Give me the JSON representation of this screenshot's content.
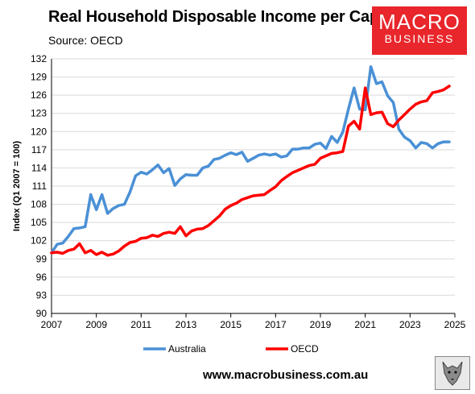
{
  "header": {
    "title": "Real Household Disposable Income per Capita",
    "source": "Source: OECD"
  },
  "logo": {
    "line1": "MACRO",
    "line2": "BUSINESS"
  },
  "footer": {
    "url": "www.macrobusiness.com.au"
  },
  "colors": {
    "australia": "#4a90d6",
    "oecd": "#ff0000",
    "logo_bg": "#e8262b"
  },
  "chart_data": {
    "type": "line",
    "xlabel": "",
    "ylabel": "Index (Q1 2007 = 100)",
    "xlim": [
      2007,
      2025
    ],
    "ylim": [
      90,
      132
    ],
    "x_ticks": [
      "2007",
      "2009",
      "2011",
      "2013",
      "2015",
      "2017",
      "2019",
      "2021",
      "2023",
      "2025"
    ],
    "y_ticks": [
      "90",
      "93",
      "96",
      "99",
      "102",
      "105",
      "108",
      "111",
      "114",
      "117",
      "120",
      "123",
      "126",
      "129",
      "132"
    ],
    "grid": "horizontal",
    "legend_position": "bottom",
    "series": [
      {
        "name": "Australia",
        "color": "#4a90d6",
        "x": [
          2007.0,
          2007.25,
          2007.5,
          2007.75,
          2008.0,
          2008.25,
          2008.5,
          2008.75,
          2009.0,
          2009.25,
          2009.5,
          2009.75,
          2010.0,
          2010.25,
          2010.5,
          2010.75,
          2011.0,
          2011.25,
          2011.5,
          2011.75,
          2012.0,
          2012.25,
          2012.5,
          2012.75,
          2013.0,
          2013.25,
          2013.5,
          2013.75,
          2014.0,
          2014.25,
          2014.5,
          2014.75,
          2015.0,
          2015.25,
          2015.5,
          2015.75,
          2016.0,
          2016.25,
          2016.5,
          2016.75,
          2017.0,
          2017.25,
          2017.5,
          2017.75,
          2018.0,
          2018.25,
          2018.5,
          2018.75,
          2019.0,
          2019.25,
          2019.5,
          2019.75,
          2020.0,
          2020.25,
          2020.5,
          2020.75,
          2021.0,
          2021.25,
          2021.5,
          2021.75,
          2022.0,
          2022.25,
          2022.5,
          2022.75,
          2023.0,
          2023.25,
          2023.5,
          2023.75,
          2024.0,
          2024.25,
          2024.5,
          2024.75
        ],
        "values": [
          100.0,
          101.4,
          101.6,
          102.7,
          104.0,
          104.1,
          104.3,
          109.6,
          107.1,
          109.6,
          106.5,
          107.3,
          107.8,
          108.0,
          110.0,
          112.7,
          113.3,
          113.0,
          113.7,
          114.5,
          113.2,
          113.9,
          111.1,
          112.2,
          112.9,
          112.8,
          112.8,
          114.0,
          114.3,
          115.4,
          115.6,
          116.1,
          116.5,
          116.2,
          116.6,
          115.1,
          115.6,
          116.1,
          116.3,
          116.1,
          116.3,
          115.8,
          116.0,
          117.1,
          117.1,
          117.3,
          117.3,
          117.9,
          118.1,
          117.2,
          119.2,
          118.2,
          119.9,
          123.7,
          127.2,
          123.7,
          123.6,
          130.7,
          127.9,
          128.2,
          125.9,
          124.8,
          120.4,
          119.1,
          118.5,
          117.3,
          118.2,
          118.0,
          117.3,
          118.0,
          118.3,
          118.3
        ]
      },
      {
        "name": "OECD",
        "color": "#ff0000",
        "x": [
          2007.0,
          2007.25,
          2007.5,
          2007.75,
          2008.0,
          2008.25,
          2008.5,
          2008.75,
          2009.0,
          2009.25,
          2009.5,
          2009.75,
          2010.0,
          2010.25,
          2010.5,
          2010.75,
          2011.0,
          2011.25,
          2011.5,
          2011.75,
          2012.0,
          2012.25,
          2012.5,
          2012.75,
          2013.0,
          2013.25,
          2013.5,
          2013.75,
          2014.0,
          2014.25,
          2014.5,
          2014.75,
          2015.0,
          2015.25,
          2015.5,
          2015.75,
          2016.0,
          2016.25,
          2016.5,
          2016.75,
          2017.0,
          2017.25,
          2017.5,
          2017.75,
          2018.0,
          2018.25,
          2018.5,
          2018.75,
          2019.0,
          2019.25,
          2019.5,
          2019.75,
          2020.0,
          2020.25,
          2020.5,
          2020.75,
          2021.0,
          2021.25,
          2021.5,
          2021.75,
          2022.0,
          2022.25,
          2022.5,
          2022.75,
          2023.0,
          2023.25,
          2023.5,
          2023.75,
          2024.0,
          2024.25,
          2024.5,
          2024.75
        ],
        "values": [
          100.0,
          100.1,
          99.9,
          100.4,
          100.6,
          101.5,
          100.0,
          100.4,
          99.7,
          100.1,
          99.6,
          99.8,
          100.3,
          101.1,
          101.7,
          101.9,
          102.4,
          102.5,
          102.9,
          102.7,
          103.2,
          103.4,
          103.2,
          104.3,
          102.8,
          103.6,
          103.9,
          104.0,
          104.5,
          105.3,
          106.1,
          107.2,
          107.8,
          108.2,
          108.8,
          109.1,
          109.4,
          109.5,
          109.6,
          110.3,
          110.9,
          111.9,
          112.6,
          113.2,
          113.6,
          114.0,
          114.4,
          114.6,
          115.6,
          116.0,
          116.4,
          116.5,
          116.7,
          120.9,
          121.7,
          120.4,
          127.2,
          122.8,
          123.1,
          123.2,
          121.3,
          120.8,
          121.9,
          122.8,
          123.7,
          124.5,
          124.9,
          125.1,
          126.4,
          126.6,
          126.9,
          127.5
        ]
      }
    ]
  }
}
